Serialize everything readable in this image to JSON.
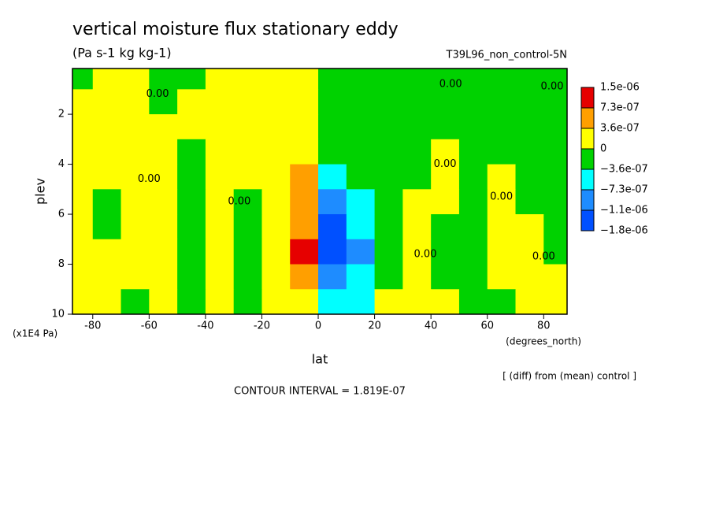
{
  "chart_data": {
    "type": "contour",
    "title": "vertical moisture flux stationary eddy",
    "subtitle": "(Pa s-1 kg kg-1)",
    "experiment": "T39L96_non_control-5N",
    "xlabel": "lat",
    "xunit": "(degrees_north)",
    "ylabel": "plev",
    "yunit": "(x1E4 Pa)",
    "note": "[ (diff) from (mean) control ]",
    "contour_interval": "CONTOUR INTERVAL = 1.819E-07",
    "xlim": [
      -87.2,
      88.3
    ],
    "ylim": [
      10,
      0.17
    ],
    "xticks": [
      -80,
      -60,
      -40,
      -20,
      0,
      20,
      40,
      60,
      80
    ],
    "yticks": [
      2,
      4,
      6,
      8,
      10
    ],
    "levels": [
      {
        "value": 1.5e-06,
        "label": "1.5e-06"
      },
      {
        "value": 7.3e-07,
        "label": "7.3e-07"
      },
      {
        "value": 3.6e-07,
        "label": "3.6e-07"
      },
      0,
      {
        "value": -3.6e-07,
        "label": "−3.6e-07"
      },
      {
        "value": -7.3e-07,
        "label": "−7.3e-07"
      },
      {
        "value": -1.1e-06,
        "label": "−1.1e-06"
      },
      {
        "value": -1.8e-06,
        "label": "−1.8e-06"
      }
    ],
    "colors": [
      "#e60000",
      "#ff9f00",
      "#ffff00",
      "#00d200",
      "#00ffff",
      "#1e8cff",
      "#0050ff"
    ],
    "field": {
      "lat": [
        -85,
        -75,
        -65,
        -55,
        -45,
        -35,
        -25,
        -15,
        -5,
        5,
        15,
        25,
        35,
        45,
        55,
        65,
        75,
        85
      ],
      "plev": [
        0.5,
        1.5,
        2.5,
        3.5,
        4.5,
        5.5,
        6.5,
        7.5,
        8.5,
        9.5
      ],
      "values": [
        [
          -1e-07,
          1e-07,
          1e-07,
          -1e-07,
          -1e-07,
          1e-07,
          1e-07,
          1e-07,
          1e-07,
          -1e-07,
          -1e-07,
          -1e-07,
          -1e-07,
          -1e-07,
          -1e-07,
          -1e-07,
          -1e-07,
          -1e-07
        ],
        [
          1e-07,
          1e-07,
          1e-07,
          -1e-07,
          1e-07,
          1e-07,
          1e-07,
          1e-07,
          1e-07,
          -1e-07,
          -1e-07,
          -1e-07,
          -1e-07,
          -1e-07,
          -1e-07,
          -1e-07,
          -1e-07,
          -1e-07
        ],
        [
          1e-07,
          1e-07,
          1e-07,
          1e-07,
          1e-07,
          1e-07,
          1e-07,
          1e-07,
          1e-07,
          -1e-07,
          -1e-07,
          -1e-07,
          -1e-07,
          -1e-07,
          -1e-07,
          -1e-07,
          -1e-07,
          -1e-07
        ],
        [
          1e-07,
          1e-07,
          1e-07,
          1e-07,
          -1e-07,
          1e-07,
          1e-07,
          1e-07,
          1e-07,
          -1e-07,
          -1e-07,
          -1e-07,
          -1e-07,
          1e-07,
          -1e-07,
          -1e-07,
          -1e-07,
          -1e-07
        ],
        [
          1e-07,
          1e-07,
          1e-07,
          1e-07,
          -1e-07,
          1e-07,
          1e-07,
          1e-07,
          5e-07,
          -5e-07,
          -1e-07,
          -1e-07,
          -1e-07,
          1e-07,
          -1e-07,
          1e-07,
          -1e-07,
          -1e-07
        ],
        [
          1e-07,
          -1e-07,
          1e-07,
          1e-07,
          -1e-07,
          1e-07,
          -1e-07,
          1e-07,
          5e-07,
          -9e-07,
          -5e-07,
          -1e-07,
          1e-07,
          1e-07,
          -1e-07,
          1e-07,
          -1e-07,
          -1e-07
        ],
        [
          1e-07,
          -1e-07,
          1e-07,
          1e-07,
          -1e-07,
          1e-07,
          -1e-07,
          1e-07,
          5e-07,
          -1.3e-06,
          -5e-07,
          -1e-07,
          1e-07,
          -1e-07,
          -1e-07,
          1e-07,
          1e-07,
          -1e-07
        ],
        [
          1e-07,
          1e-07,
          1e-07,
          1e-07,
          -1e-07,
          1e-07,
          -1e-07,
          1e-07,
          1e-06,
          -1.3e-06,
          -9e-07,
          -1e-07,
          1e-07,
          -1e-07,
          -1e-07,
          1e-07,
          1e-07,
          -1e-07
        ],
        [
          1e-07,
          1e-07,
          1e-07,
          1e-07,
          -1e-07,
          1e-07,
          -1e-07,
          1e-07,
          5e-07,
          -9e-07,
          -5e-07,
          -1e-07,
          1e-07,
          -1e-07,
          -1e-07,
          1e-07,
          1e-07,
          1e-07
        ],
        [
          1e-07,
          1e-07,
          -1e-07,
          1e-07,
          -1e-07,
          1e-07,
          -1e-07,
          1e-07,
          1e-07,
          -5e-07,
          -5e-07,
          1e-07,
          1e-07,
          1e-07,
          -1e-07,
          -1e-07,
          1e-07,
          1e-07
        ]
      ]
    },
    "annotations": [
      {
        "label": "0.00",
        "lat": -57,
        "plev": 1.2
      },
      {
        "label": "0.00",
        "lat": 47,
        "plev": 0.8
      },
      {
        "label": "0.00",
        "lat": 83,
        "plev": 0.9
      },
      {
        "label": "0.00",
        "lat": -60,
        "plev": 4.6
      },
      {
        "label": "0.00",
        "lat": -28,
        "plev": 5.5
      },
      {
        "label": "0.00",
        "lat": 45,
        "plev": 4.0
      },
      {
        "label": "0.00",
        "lat": 65,
        "plev": 5.3
      },
      {
        "label": "0.00",
        "lat": 38,
        "plev": 7.6
      },
      {
        "label": "0.00",
        "lat": 80,
        "plev": 7.7
      }
    ]
  }
}
